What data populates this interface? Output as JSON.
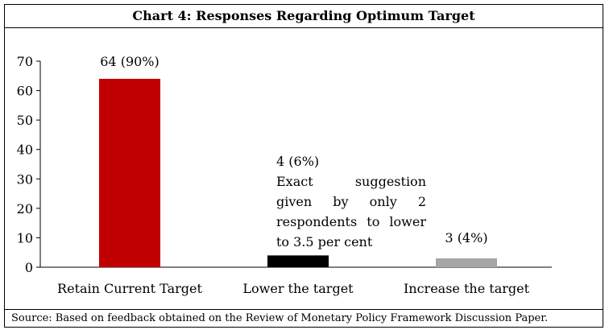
{
  "chart_data": {
    "type": "bar",
    "title": "Chart 4: Responses Regarding Optimum Target",
    "categories": [
      "Retain Current Target",
      "Lower the target",
      "Increase the target"
    ],
    "values": [
      64,
      4,
      3
    ],
    "data_labels": [
      "64 (90%)",
      "4 (6%)",
      "3 (4%)"
    ],
    "colors": [
      "#c00000",
      "#000000",
      "#a6a6a6"
    ],
    "ylim": [
      0,
      70
    ],
    "yticks": [
      0,
      10,
      20,
      30,
      40,
      50,
      60,
      70
    ],
    "grid": false,
    "xlabel": "",
    "ylabel": "",
    "annotation": [
      "Exact suggestion",
      "given by only 2",
      "respondents to lower",
      "to 3.5 per cent"
    ],
    "source": "Source: Based on feedback obtained on the Review of Monetary Policy Framework Discussion Paper."
  }
}
